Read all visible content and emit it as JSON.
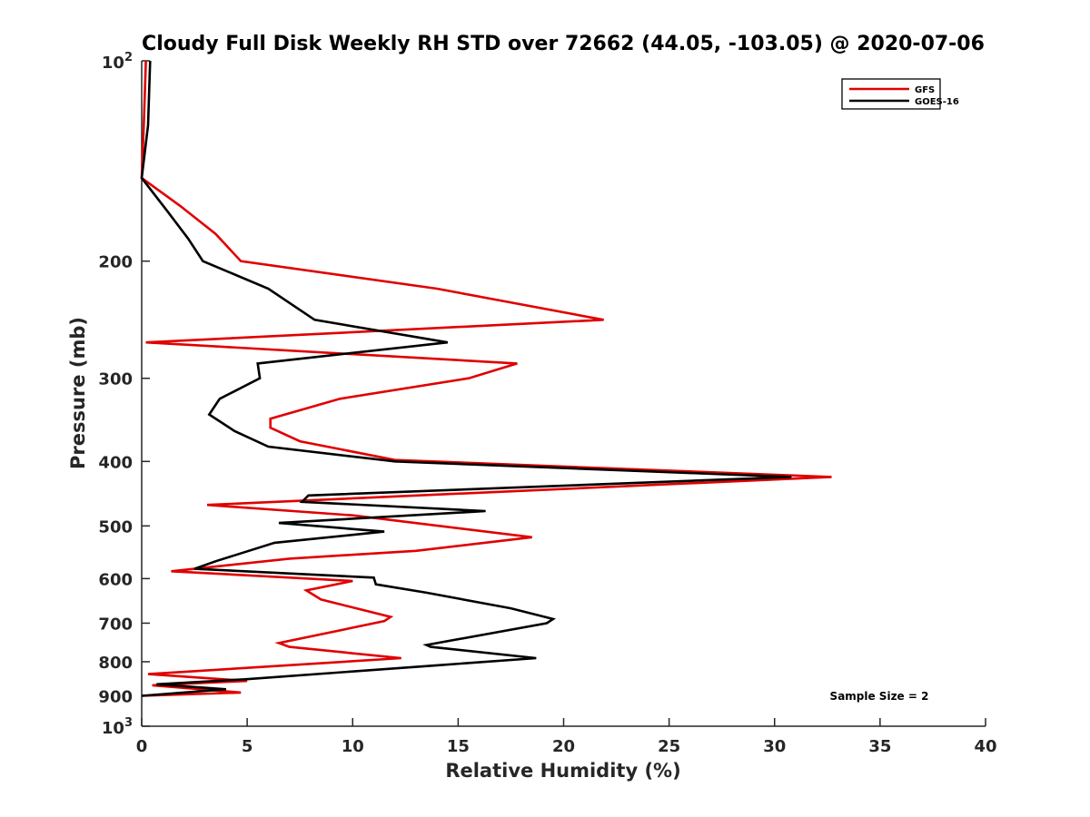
{
  "chart_data": {
    "type": "line",
    "title": "Cloudy Full Disk Weekly RH STD over 72662 (44.05, -103.05) @ 2020-07-06",
    "xlabel": "Relative Humidity (%)",
    "ylabel": "Pressure (mb)",
    "xlim": [
      0,
      40
    ],
    "ylim": [
      1000,
      100
    ],
    "yscale": "log",
    "y_reversed": true,
    "x_ticks": [
      "0",
      "5",
      "10",
      "15",
      "20",
      "25",
      "30",
      "35",
      "40"
    ],
    "y_ticks": [
      {
        "value": 100,
        "label": "10",
        "sup": "2"
      },
      {
        "value": 200,
        "label": "200",
        "sup": ""
      },
      {
        "value": 300,
        "label": "300",
        "sup": ""
      },
      {
        "value": 400,
        "label": "400",
        "sup": ""
      },
      {
        "value": 500,
        "label": "500",
        "sup": ""
      },
      {
        "value": 600,
        "label": "600",
        "sup": ""
      },
      {
        "value": 700,
        "label": "700",
        "sup": ""
      },
      {
        "value": 800,
        "label": "800",
        "sup": ""
      },
      {
        "value": 900,
        "label": "900",
        "sup": ""
      },
      {
        "value": 1000,
        "label": "10",
        "sup": "3"
      }
    ],
    "grid": false,
    "legend_position": "top-right",
    "annotation": "Sample Size = 2",
    "series": [
      {
        "name": "GFS",
        "color": "#e00000",
        "points": [
          [
            0.2,
            100
          ],
          [
            0.1,
            125
          ],
          [
            0.0,
            150
          ],
          [
            1.8,
            165
          ],
          [
            3.5,
            182
          ],
          [
            4.7,
            200
          ],
          [
            14.0,
            220
          ],
          [
            21.9,
            245
          ],
          [
            0.2,
            265
          ],
          [
            17.8,
            285
          ],
          [
            15.5,
            300
          ],
          [
            9.4,
            322
          ],
          [
            6.1,
            345
          ],
          [
            6.1,
            356
          ],
          [
            7.5,
            373
          ],
          [
            12.0,
            398
          ],
          [
            32.7,
            422
          ],
          [
            3.1,
            465
          ],
          [
            10.0,
            482
          ],
          [
            18.5,
            520
          ],
          [
            13.0,
            545
          ],
          [
            7.0,
            560
          ],
          [
            1.4,
            585
          ],
          [
            10.0,
            605
          ],
          [
            7.8,
            625
          ],
          [
            8.5,
            645
          ],
          [
            11.8,
            685
          ],
          [
            11.5,
            695
          ],
          [
            6.5,
            750
          ],
          [
            7.0,
            760
          ],
          [
            12.3,
            790
          ],
          [
            0.3,
            835
          ],
          [
            5.0,
            855
          ],
          [
            0.5,
            868
          ],
          [
            4.7,
            890
          ],
          [
            0.0,
            900
          ]
        ]
      },
      {
        "name": "GOES-16",
        "color": "#000000",
        "points": [
          [
            0.4,
            100
          ],
          [
            0.3,
            125
          ],
          [
            0.0,
            150
          ],
          [
            1.2,
            168
          ],
          [
            2.2,
            185
          ],
          [
            2.9,
            200
          ],
          [
            6.0,
            220
          ],
          [
            8.2,
            245
          ],
          [
            14.5,
            265
          ],
          [
            5.5,
            285
          ],
          [
            5.6,
            300
          ],
          [
            3.7,
            322
          ],
          [
            3.2,
            340
          ],
          [
            4.4,
            360
          ],
          [
            6.0,
            380
          ],
          [
            12.0,
            400
          ],
          [
            30.8,
            422
          ],
          [
            7.9,
            450
          ],
          [
            7.6,
            460
          ],
          [
            16.3,
            475
          ],
          [
            6.5,
            495
          ],
          [
            11.5,
            510
          ],
          [
            6.3,
            530
          ],
          [
            3.5,
            565
          ],
          [
            2.5,
            580
          ],
          [
            11.0,
            598
          ],
          [
            11.1,
            612
          ],
          [
            13.5,
            630
          ],
          [
            17.5,
            665
          ],
          [
            19.5,
            690
          ],
          [
            19.2,
            700
          ],
          [
            13.5,
            755
          ],
          [
            13.7,
            760
          ],
          [
            18.7,
            790
          ],
          [
            14.0,
            810
          ],
          [
            4.9,
            850
          ],
          [
            0.7,
            865
          ],
          [
            4.0,
            880
          ],
          [
            0.0,
            900
          ]
        ]
      }
    ]
  }
}
